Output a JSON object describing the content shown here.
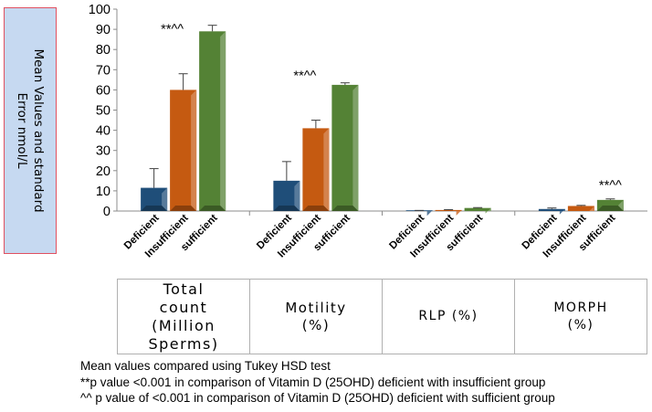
{
  "y_axis_label": "Mean Values  and standard\nError nmol/L",
  "chart_data": {
    "type": "bar",
    "ylim": [
      0,
      100
    ],
    "yticks": [
      0,
      10,
      20,
      30,
      40,
      50,
      60,
      70,
      80,
      90,
      100
    ],
    "series_names": [
      "Deficient",
      "Insufficient",
      "sufficient"
    ],
    "colors": [
      "#1f4e79",
      "#c55a11",
      "#548235"
    ],
    "groups": [
      {
        "category": "Total\ncount\n(Million\nSperms)",
        "values": [
          11.5,
          60,
          89
        ],
        "errors": [
          9.5,
          8,
          3
        ],
        "annotation": "**^^"
      },
      {
        "category": "Motility\n(%)",
        "values": [
          15,
          41,
          62.5
        ],
        "errors": [
          9.5,
          4,
          1
        ],
        "annotation": "**^^"
      },
      {
        "category": "RLP (%)",
        "values": [
          0.2,
          0.5,
          1.5
        ],
        "errors": [
          0.1,
          0.2,
          0.2
        ],
        "annotation": ""
      },
      {
        "category": "MORPH\n(%)",
        "values": [
          1,
          2.5,
          5.5
        ],
        "errors": [
          0.5,
          0.3,
          0.5
        ],
        "annotation": "**^^"
      }
    ]
  },
  "notes": [
    "Mean values compared using Tukey HSD test",
    "**p value <0.001 in comparison of Vitamin D (25OHD) deficient with insufficient group",
    "^^ p value of <0.001 in comparison of Vitamin D (25OHD) deficient with sufficient group"
  ]
}
